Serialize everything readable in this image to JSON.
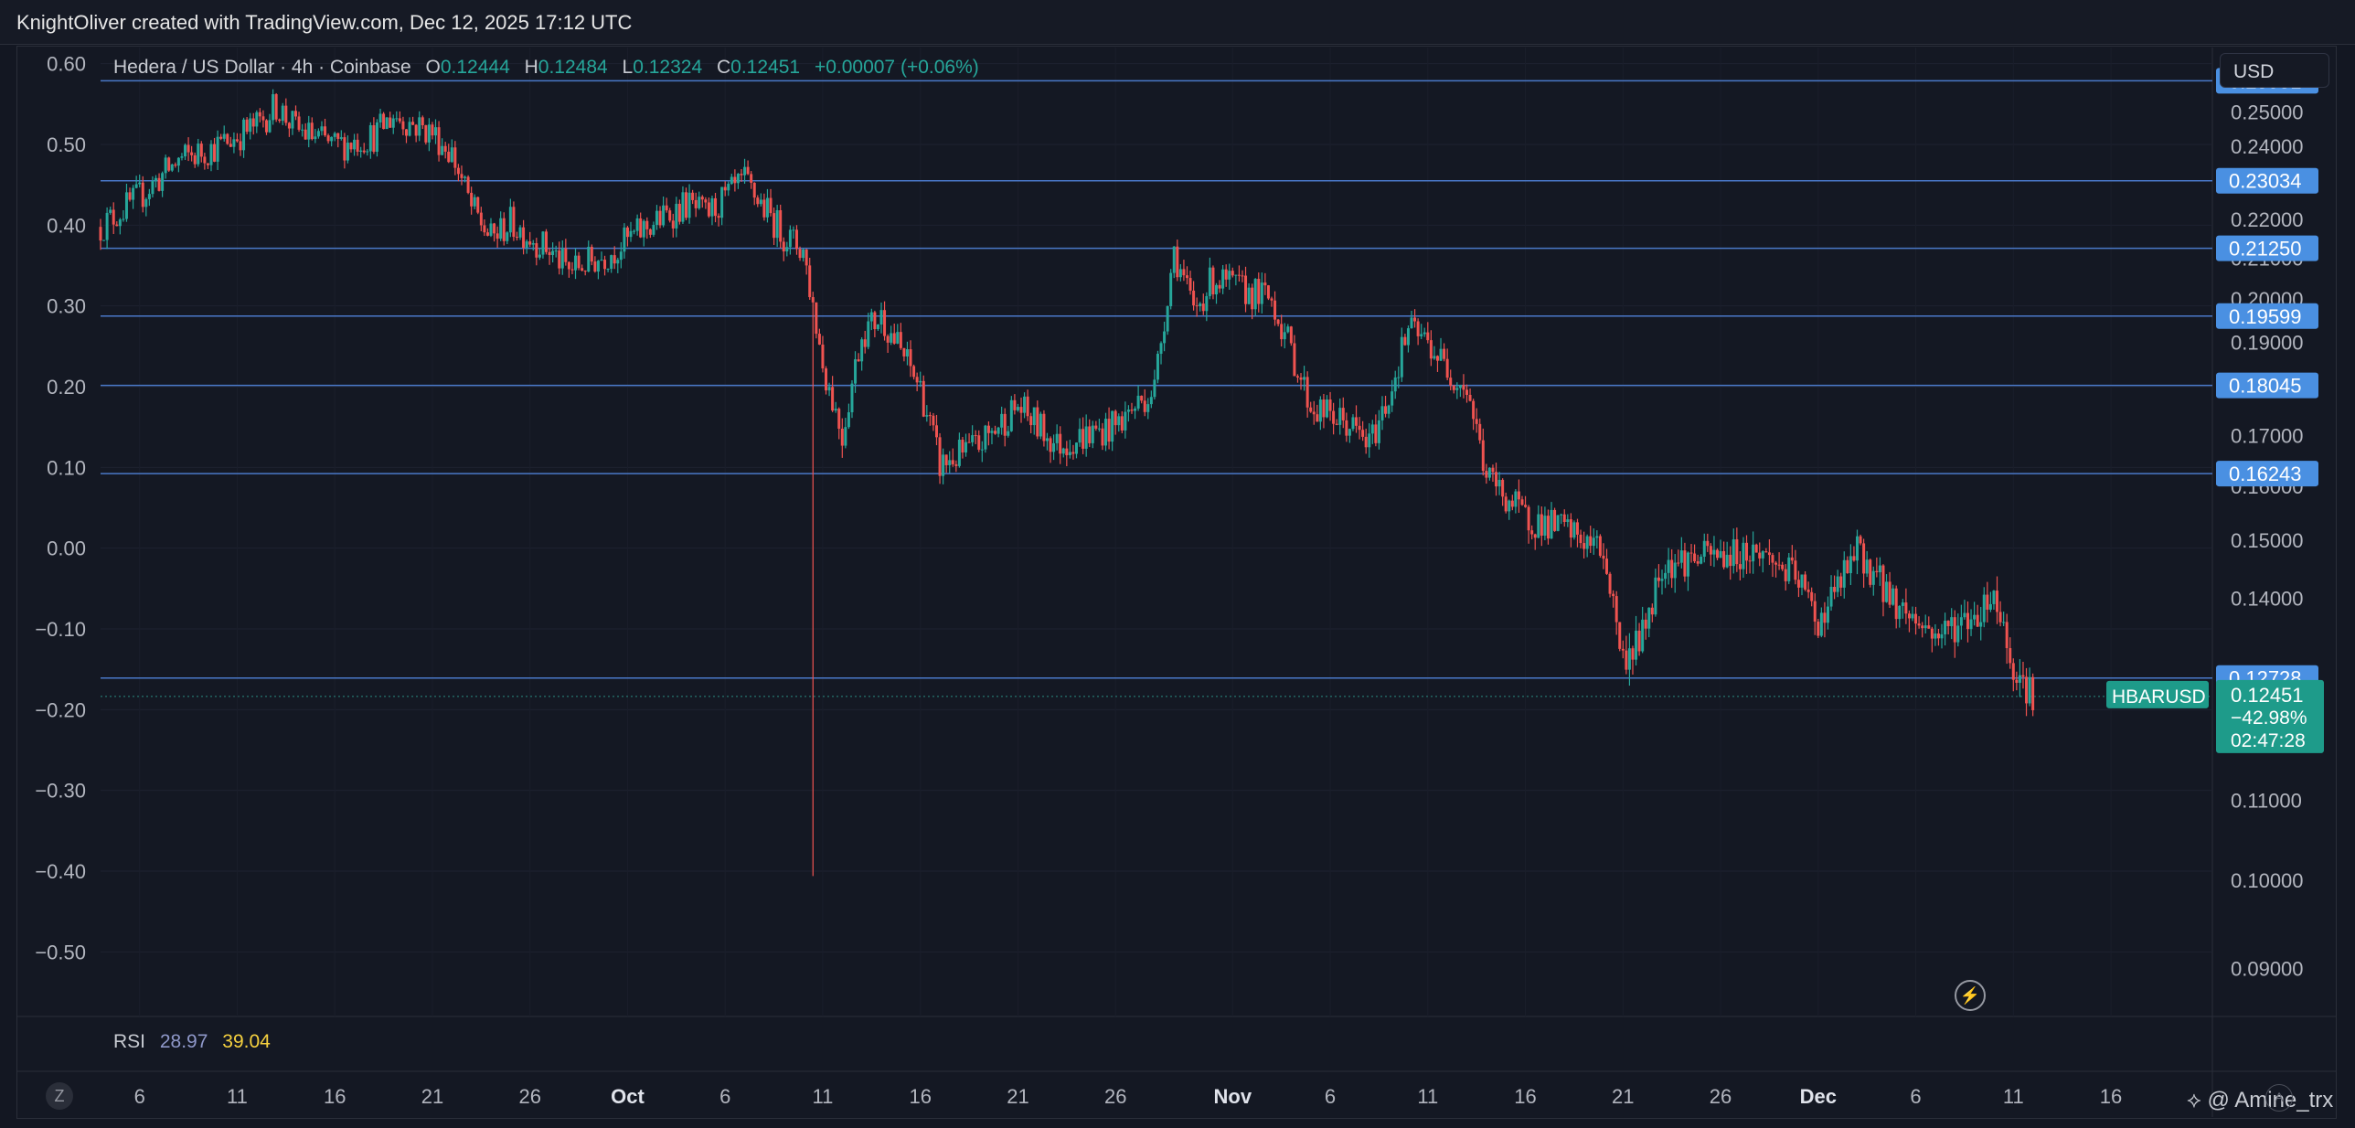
{
  "header": {
    "credit": "KnightOliver created with TradingView.com, Dec 12, 2025 17:12 UTC"
  },
  "legend": {
    "symbol": "Hedera / US Dollar · 4h · Coinbase",
    "o_label": "O",
    "o": "0.12444",
    "h_label": "H",
    "h": "0.12484",
    "l_label": "L",
    "l": "0.12324",
    "c_label": "C",
    "c": "0.12451",
    "change": "+0.00007 (+0.06%)"
  },
  "currency": "USD",
  "rsi": {
    "label": "RSI",
    "value1": "28.97",
    "value2": "39.04"
  },
  "bottom": {
    "z_button": "Z",
    "watermark": "Amine_trx"
  },
  "colors": {
    "up": "#26a69a",
    "down": "#ef5350",
    "level_line": "#4a78c8",
    "level_label_bg": "#4a90e2",
    "price_label_bg": "#1e9b8a",
    "rsi_value2": "#f7d23f"
  },
  "chart_data": {
    "type": "candlestick",
    "symbol_label": "HBARUSD",
    "left_axis": {
      "ticks": [
        "0.60",
        "0.50",
        "0.40",
        "0.30",
        "0.20",
        "0.10",
        "0.00",
        "−0.10",
        "−0.20",
        "−0.30",
        "−0.40",
        "−0.50"
      ],
      "range": [
        -0.58,
        0.62
      ]
    },
    "right_axis": {
      "scale": "log",
      "range": [
        0.085,
        0.27
      ],
      "ticks": [
        "0.25000",
        "0.24000",
        "0.22000",
        "0.21000",
        "0.20000",
        "0.19000",
        "0.17000",
        "0.16000",
        "0.15000",
        "0.14000",
        "0.11000",
        "0.10000",
        "0.09000"
      ]
    },
    "x_axis": {
      "ticks": [
        "6",
        "11",
        "16",
        "21",
        "26",
        "Oct",
        "6",
        "11",
        "16",
        "21",
        "26",
        "Nov",
        "6",
        "11",
        "16",
        "21",
        "26",
        "Dec",
        "6",
        "11",
        "16",
        "21"
      ]
    },
    "levels": [
      "0.25951",
      "0.23034",
      "0.21250",
      "0.19599",
      "0.18045",
      "0.16243",
      "0.12728"
    ],
    "current_price": {
      "value": "0.12451",
      "change": "−42.98%",
      "countdown": "02:47:28"
    },
    "path_points": [
      [
        "Sep 4",
        0.218
      ],
      [
        "Sep 6",
        0.226
      ],
      [
        "Sep 8",
        0.236
      ],
      [
        "Sep 10",
        0.24
      ],
      [
        "Sep 12",
        0.246
      ],
      [
        "Sep 13",
        0.252
      ],
      [
        "Sep 14",
        0.245
      ],
      [
        "Sep 16",
        0.24
      ],
      [
        "Sep 18",
        0.243
      ],
      [
        "Sep 19",
        0.249
      ],
      [
        "Sep 21",
        0.244
      ],
      [
        "Sep 22",
        0.238
      ],
      [
        "Sep 23",
        0.223
      ],
      [
        "Sep 24",
        0.215
      ],
      [
        "Sep 25",
        0.219
      ],
      [
        "Sep 27",
        0.212
      ],
      [
        "Sep 28",
        0.207
      ],
      [
        "Sep 30",
        0.211
      ],
      [
        "Oct 2",
        0.218
      ],
      [
        "Oct 4",
        0.224
      ],
      [
        "Oct 5",
        0.221
      ],
      [
        "Oct 7",
        0.23
      ],
      [
        "Oct 9",
        0.216
      ],
      [
        "Oct 10",
        0.212
      ],
      [
        "Oct 11",
        0.185
      ],
      [
        "Oct 12",
        0.17
      ],
      [
        "Oct 13",
        0.192
      ],
      [
        "Oct 14",
        0.196
      ],
      [
        "Oct 16",
        0.18
      ],
      [
        "Oct 17",
        0.164
      ],
      [
        "Oct 19",
        0.168
      ],
      [
        "Oct 21",
        0.176
      ],
      [
        "Oct 23",
        0.168
      ],
      [
        "Oct 26",
        0.172
      ],
      [
        "Oct 28",
        0.18
      ],
      [
        "Oct 29",
        0.212
      ],
      [
        "Oct 30",
        0.197
      ],
      [
        "Oct 31",
        0.205
      ],
      [
        "Nov 1",
        0.203
      ],
      [
        "Nov 3",
        0.2
      ],
      [
        "Nov 5",
        0.176
      ],
      [
        "Nov 7",
        0.172
      ],
      [
        "Nov 8",
        0.168
      ],
      [
        "Nov 9",
        0.178
      ],
      [
        "Nov 10",
        0.193
      ],
      [
        "Nov 11",
        0.19
      ],
      [
        "Nov 12",
        0.184
      ],
      [
        "Nov 13",
        0.18
      ],
      [
        "Nov 14",
        0.162
      ],
      [
        "Nov 16",
        0.154
      ],
      [
        "Nov 18",
        0.152
      ],
      [
        "Nov 20",
        0.148
      ],
      [
        "Nov 21",
        0.13
      ],
      [
        "Nov 22",
        0.134
      ],
      [
        "Nov 23",
        0.146
      ],
      [
        "Nov 25",
        0.147
      ],
      [
        "Nov 28",
        0.148
      ],
      [
        "Nov 30",
        0.143
      ],
      [
        "Dec 1",
        0.136
      ],
      [
        "Dec 3",
        0.148
      ],
      [
        "Dec 5",
        0.139
      ],
      [
        "Dec 7",
        0.134
      ],
      [
        "Dec 9",
        0.137
      ],
      [
        "Dec 10",
        0.141
      ],
      [
        "Dec 11",
        0.129
      ],
      [
        "Dec 12",
        0.1245
      ]
    ],
    "wicks": [
      [
        "Oct 10",
        0.1005,
        0.19
      ]
    ]
  }
}
